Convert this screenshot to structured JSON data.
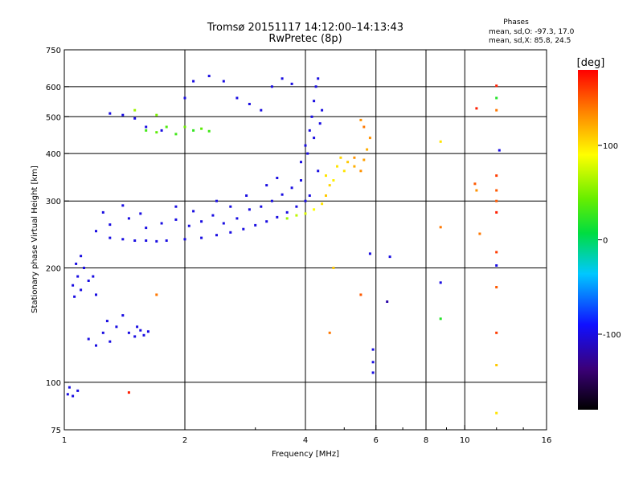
{
  "chart_data": {
    "type": "scatter",
    "title": "Tromsø 20151117 14:12:00–14:13:43",
    "subtitle": "RwPretec (8p)",
    "xlabel": "Frequency [MHz]",
    "ylabel": "Stationary phase Virtual Height [km]",
    "x_scale": "log",
    "y_scale": "log",
    "xlim": [
      1,
      16
    ],
    "ylim": [
      75,
      750
    ],
    "x_ticks": [
      1,
      2,
      4,
      6,
      8,
      10,
      16
    ],
    "y_ticks": [
      75,
      100,
      200,
      300,
      400,
      500,
      600,
      750
    ],
    "x_tick_labels": [
      "1",
      "2",
      "4",
      "6",
      "8",
      "10",
      "16"
    ],
    "y_tick_labels": [
      "75",
      "100",
      "200",
      "300",
      "400",
      "500",
      "600",
      "750"
    ],
    "grid": true,
    "info": {
      "heading": "Phases",
      "line1": "mean, sd,O: -97.3, 17.0",
      "line2": "mean, sd,X: 85.8, 24.5"
    },
    "colorbar": {
      "label": "[deg]",
      "range": [
        -180,
        180
      ],
      "ticks": [
        100,
        0,
        -100
      ],
      "tick_labels": [
        "100",
        "0",
        "-100"
      ]
    },
    "series": [
      {
        "points": [
          [
            1.02,
            93,
            -100
          ],
          [
            1.05,
            92,
            -100
          ],
          [
            1.08,
            95,
            -100
          ],
          [
            1.03,
            97,
            -100
          ],
          [
            1.05,
            180,
            -100
          ],
          [
            1.08,
            190,
            -100
          ],
          [
            1.1,
            175,
            -100
          ],
          [
            1.12,
            200,
            -100
          ],
          [
            1.15,
            185,
            -100
          ],
          [
            1.07,
            205,
            -100
          ],
          [
            1.18,
            190,
            -100
          ],
          [
            1.2,
            170,
            -100
          ],
          [
            1.1,
            215,
            -100
          ],
          [
            1.06,
            168,
            -100
          ],
          [
            1.15,
            130,
            -100
          ],
          [
            1.2,
            125,
            -100
          ],
          [
            1.25,
            135,
            -100
          ],
          [
            1.3,
            128,
            -100
          ],
          [
            1.35,
            140,
            -100
          ],
          [
            1.28,
            145,
            -100
          ],
          [
            1.4,
            150,
            -100
          ],
          [
            1.45,
            135,
            -100
          ],
          [
            1.5,
            132,
            -100
          ],
          [
            1.55,
            137,
            -100
          ],
          [
            1.58,
            133,
            -100
          ],
          [
            1.52,
            140,
            -100
          ],
          [
            1.62,
            136,
            -100
          ],
          [
            1.2,
            250,
            -100
          ],
          [
            1.3,
            240,
            -100
          ],
          [
            1.4,
            238,
            -100
          ],
          [
            1.5,
            236,
            -100
          ],
          [
            1.6,
            236,
            -100
          ],
          [
            1.7,
            235,
            -100
          ],
          [
            1.8,
            236,
            -100
          ],
          [
            2.0,
            238,
            -100
          ],
          [
            2.2,
            240,
            -100
          ],
          [
            2.4,
            244,
            -100
          ],
          [
            2.6,
            248,
            -100
          ],
          [
            2.8,
            253,
            -100
          ],
          [
            3.0,
            259,
            -100
          ],
          [
            3.2,
            265,
            -100
          ],
          [
            3.4,
            272,
            -100
          ],
          [
            3.6,
            280,
            -100
          ],
          [
            3.8,
            290,
            -100
          ],
          [
            4.0,
            300,
            -100
          ],
          [
            4.1,
            310,
            -100
          ],
          [
            1.3,
            260,
            -100
          ],
          [
            1.45,
            270,
            -100
          ],
          [
            1.6,
            255,
            -100
          ],
          [
            1.75,
            262,
            -100
          ],
          [
            1.9,
            268,
            -100
          ],
          [
            2.05,
            258,
            -100
          ],
          [
            2.2,
            265,
            -100
          ],
          [
            2.35,
            275,
            -100
          ],
          [
            2.5,
            262,
            -100
          ],
          [
            2.7,
            270,
            -100
          ],
          [
            2.9,
            285,
            -100
          ],
          [
            3.1,
            290,
            -100
          ],
          [
            3.3,
            300,
            -100
          ],
          [
            3.5,
            312,
            -100
          ],
          [
            3.7,
            325,
            -100
          ],
          [
            3.9,
            340,
            -100
          ],
          [
            1.25,
            280,
            -100
          ],
          [
            1.4,
            292,
            -100
          ],
          [
            1.55,
            278,
            -100
          ],
          [
            1.9,
            290,
            -100
          ],
          [
            2.1,
            282,
            -100
          ],
          [
            2.4,
            300,
            -100
          ],
          [
            2.6,
            290,
            -100
          ],
          [
            2.85,
            310,
            -100
          ],
          [
            3.2,
            330,
            -100
          ],
          [
            3.4,
            345,
            -100
          ],
          [
            3.9,
            380,
            -100
          ],
          [
            4.0,
            420,
            -100
          ],
          [
            4.1,
            460,
            -100
          ],
          [
            4.15,
            500,
            -100
          ],
          [
            4.2,
            550,
            -100
          ],
          [
            4.25,
            600,
            -100
          ],
          [
            4.3,
            630,
            -100
          ],
          [
            4.05,
            400,
            -100
          ],
          [
            4.2,
            440,
            -100
          ],
          [
            4.35,
            480,
            -100
          ],
          [
            4.4,
            520,
            -100
          ],
          [
            4.3,
            360,
            -100
          ],
          [
            1.3,
            510,
            -100
          ],
          [
            1.4,
            505,
            -100
          ],
          [
            1.5,
            495,
            -100
          ],
          [
            1.6,
            470,
            -100
          ],
          [
            1.75,
            460,
            -100
          ],
          [
            2.0,
            560,
            -100
          ],
          [
            2.1,
            620,
            -100
          ],
          [
            2.3,
            640,
            -100
          ],
          [
            2.5,
            620,
            -100
          ],
          [
            2.7,
            560,
            -100
          ],
          [
            2.9,
            540,
            -100
          ],
          [
            3.1,
            520,
            -100
          ],
          [
            3.3,
            600,
            -100
          ],
          [
            3.5,
            630,
            -100
          ],
          [
            3.7,
            610,
            -100
          ],
          [
            5.8,
            218,
            -100
          ],
          [
            6.5,
            214,
            -100
          ],
          [
            6.4,
            163,
            -120
          ],
          [
            5.9,
            122,
            -100
          ],
          [
            5.9,
            113,
            -100
          ],
          [
            5.9,
            106,
            -100
          ],
          [
            8.7,
            183,
            -100
          ],
          [
            12.2,
            408,
            -100
          ],
          [
            12.0,
            203,
            -100
          ],
          [
            1.6,
            460,
            30
          ],
          [
            1.7,
            455,
            40
          ],
          [
            1.8,
            470,
            35
          ],
          [
            1.9,
            450,
            30
          ],
          [
            2.1,
            460,
            25
          ],
          [
            2.2,
            465,
            40
          ],
          [
            2.3,
            458,
            30
          ],
          [
            1.5,
            520,
            60
          ],
          [
            1.7,
            505,
            50
          ],
          [
            2.0,
            470,
            45
          ],
          [
            3.6,
            270,
            60
          ],
          [
            3.8,
            275,
            70
          ],
          [
            4.0,
            278,
            80
          ],
          [
            4.2,
            285,
            90
          ],
          [
            4.4,
            295,
            100
          ],
          [
            4.5,
            310,
            110
          ],
          [
            4.6,
            330,
            105
          ],
          [
            4.5,
            350,
            100
          ],
          [
            4.7,
            340,
            95
          ],
          [
            4.8,
            370,
            100
          ],
          [
            4.9,
            390,
            105
          ],
          [
            5.0,
            360,
            100
          ],
          [
            5.1,
            380,
            110
          ],
          [
            5.3,
            370,
            120
          ],
          [
            5.5,
            360,
            130
          ],
          [
            5.6,
            385,
            125
          ],
          [
            5.7,
            410,
            120
          ],
          [
            5.8,
            440,
            130
          ],
          [
            5.6,
            470,
            140
          ],
          [
            5.5,
            490,
            130
          ],
          [
            4.7,
            200,
            110
          ],
          [
            4.6,
            135,
            140
          ],
          [
            5.3,
            390,
            130
          ],
          [
            5.5,
            170,
            150
          ],
          [
            1.45,
            94,
            170
          ],
          [
            1.7,
            170,
            140
          ],
          [
            8.7,
            256,
            140
          ],
          [
            8.7,
            147,
            20
          ],
          [
            8.7,
            430,
            100
          ],
          [
            10.7,
            526,
            170
          ],
          [
            10.6,
            333,
            150
          ],
          [
            10.7,
            320,
            130
          ],
          [
            10.9,
            246,
            140
          ],
          [
            12.0,
            603,
            170
          ],
          [
            12.0,
            560,
            20
          ],
          [
            12.0,
            520,
            140
          ],
          [
            12.0,
            350,
            160
          ],
          [
            12.0,
            320,
            150
          ],
          [
            12.0,
            300,
            150
          ],
          [
            12.0,
            280,
            170
          ],
          [
            12.0,
            220,
            160
          ],
          [
            12.0,
            178,
            150
          ],
          [
            12.0,
            135,
            160
          ],
          [
            12.0,
            111,
            110
          ],
          [
            12.0,
            83,
            100
          ]
        ]
      }
    ]
  }
}
